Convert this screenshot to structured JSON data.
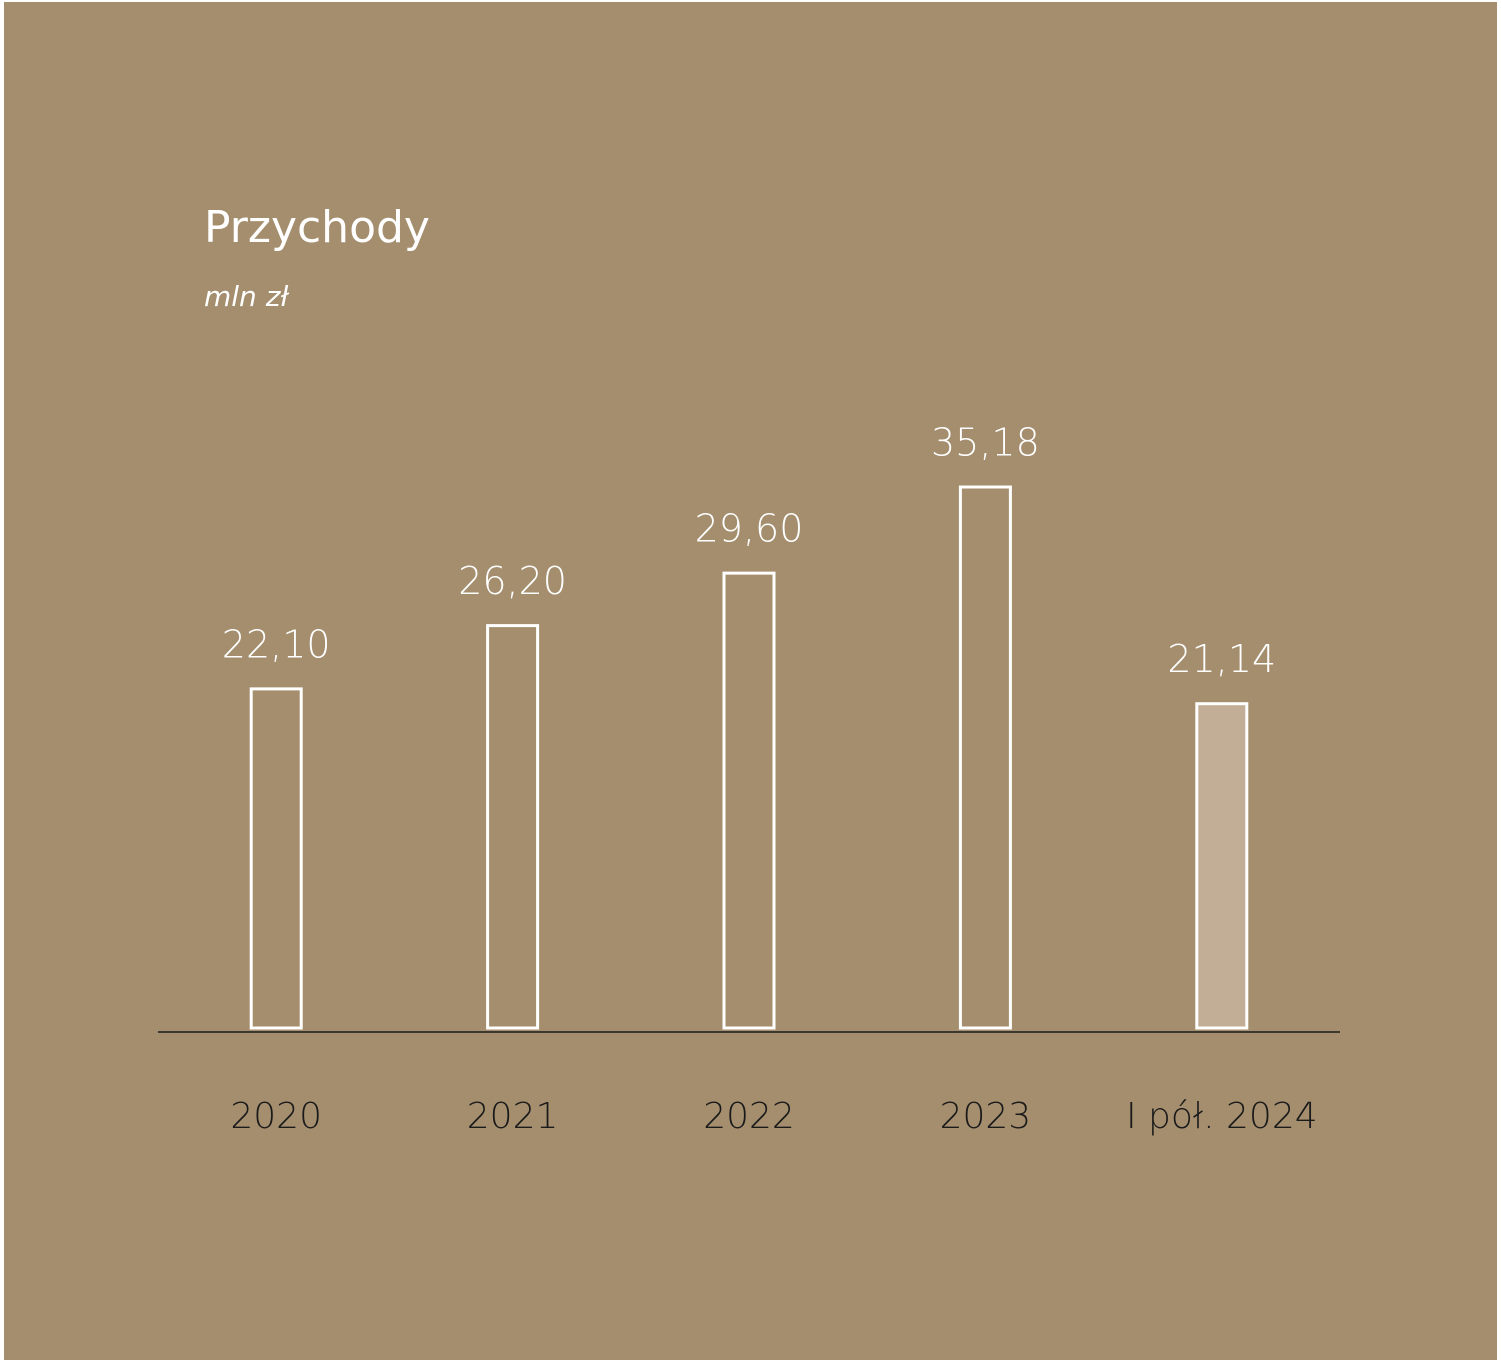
{
  "chart_data": {
    "type": "bar",
    "title": "Przychody",
    "subtitle": "mln zł",
    "categories": [
      "2020",
      "2021",
      "2022",
      "2023",
      "I pół. 2024"
    ],
    "values": [
      22.1,
      26.2,
      29.6,
      35.18,
      21.14
    ],
    "value_labels": [
      "22,10",
      "26,20",
      "29,60",
      "35,18",
      "21,14"
    ],
    "fill_colors": [
      "transparent",
      "transparent",
      "transparent",
      "transparent",
      "#c2ae96"
    ],
    "edge_color": "#ffffff",
    "background": "#a48e6e",
    "axis_color": "#1a1a1a"
  }
}
